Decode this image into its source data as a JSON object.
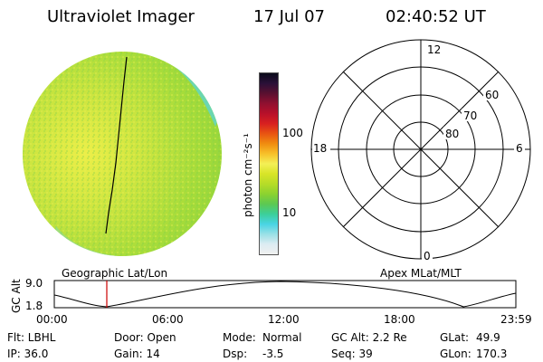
{
  "header": {
    "title": "Ultraviolet Imager",
    "date": "17 Jul 07",
    "time": "02:40:52 UT"
  },
  "colorbar": {
    "unit_label": "photon cm⁻²s⁻¹",
    "ticks": [
      "100",
      "10"
    ],
    "scale": "log",
    "colors": [
      "#f0f0f0",
      "#dcecf2",
      "#9ae0e6",
      "#49d4e4",
      "#3ccf9a",
      "#5cc852",
      "#8cd230",
      "#b6dc28",
      "#d8e428",
      "#f4f056",
      "#f7c02a",
      "#f08c10",
      "#e85412",
      "#d82020",
      "#b8102a",
      "#901030",
      "#5a1030",
      "#2a1038",
      "#0a0a1a"
    ]
  },
  "polar_grid": {
    "labels": {
      "top": "12",
      "right": "6",
      "left": "18",
      "bottom": "0"
    },
    "ring_labels": [
      "60",
      "70",
      "80"
    ]
  },
  "image_panel": {
    "colors": {
      "field": "#a9de3c",
      "bright": "#e6ee4a",
      "edge": "#5bd6c8"
    }
  },
  "timeline": {
    "y_label": "GC Alt",
    "y_ticks": [
      "9.0",
      "1.8"
    ],
    "left_label": "Geographic Lat/Lon",
    "right_label": "Apex MLat/MLT",
    "x_ticks": [
      "00:00",
      "06:00",
      "12:00",
      "18:00",
      "23:59"
    ],
    "marker_color": "#cc0000"
  },
  "info": {
    "row1": {
      "flt": "Flt: LBHL",
      "door": "Door: Open",
      "mode_label": "Mode:",
      "mode_value": "Normal",
      "gc_alt": "GC Alt: 2.2 Re",
      "glat_label": "GLat:",
      "glat_value": "49.9"
    },
    "row2": {
      "ip": "IP: 36.0",
      "gain": "Gain: 14",
      "dsp_label": "Dsp:",
      "dsp_value": "-3.5",
      "seq": "Seq: 39",
      "glon_label": "GLon:",
      "glon_value": "170.3"
    }
  }
}
